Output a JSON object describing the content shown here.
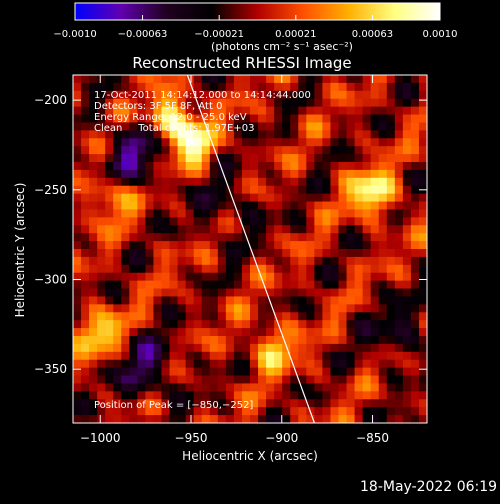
{
  "chart_data": {
    "type": "heatmap",
    "title": "Reconstructed RHESSI Image",
    "xlabel": "Heliocentric X (arcsec)",
    "ylabel": "Heliocentric Y (arcsec)",
    "xlim": [
      -1015,
      -820
    ],
    "ylim": [
      -380,
      -186
    ],
    "xticks": [
      -1000,
      -950,
      -900,
      -850
    ],
    "xtick_labels": [
      "−1000",
      "−950",
      "−900",
      "−850"
    ],
    "yticks": [
      -200,
      -250,
      -300,
      -350
    ],
    "ytick_labels": [
      "−200",
      "−250",
      "−300",
      "−350"
    ],
    "colorbar": {
      "range": [
        -0.001,
        0.001
      ],
      "ticks": [
        -0.001,
        -0.00063,
        -0.00021,
        0.00021,
        0.00063,
        0.001
      ],
      "tick_labels": [
        "−0.0010",
        "−0.00063",
        "−0.00021",
        "0.00021",
        "0.00063",
        "0.0010"
      ],
      "unit_label": "(photons cm⁻² s⁻¹ asec⁻²)",
      "colors": [
        "#0000ff",
        "#6000b0",
        "#200020",
        "#000000",
        "#b00000",
        "#ff5000",
        "#ffb000",
        "#ffff80",
        "#ffffff"
      ]
    },
    "info_lines": [
      "17-Oct-2011 14:14:12.000 to 14:14:44.000",
      "Detectors: 3F 5F 8F, Att 0",
      "Energy Range: 12.0 - 25.0 keV",
      "Clean     Total counts: 1.97E+03"
    ],
    "peak_label": "Position of Peak = [−850,−252]",
    "limb_line": [
      [
        -952,
        -186
      ],
      [
        -882,
        -380
      ]
    ],
    "hotspots": [
      {
        "x": -960,
        "y": -210,
        "amp": 1.0
      },
      {
        "x": -950,
        "y": -225,
        "amp": 0.9
      },
      {
        "x": -850,
        "y": -252,
        "amp": 1.0
      },
      {
        "x": -1000,
        "y": -330,
        "amp": 0.8
      },
      {
        "x": -905,
        "y": -338,
        "amp": 0.7
      },
      {
        "x": -995,
        "y": -255,
        "amp": 0.6
      }
    ],
    "coldspots": [
      {
        "x": -980,
        "y": -230,
        "amp": 0.9
      },
      {
        "x": -975,
        "y": -350,
        "amp": 0.8
      },
      {
        "x": -930,
        "y": -260,
        "amp": 0.5
      },
      {
        "x": -835,
        "y": -330,
        "amp": 0.6
      }
    ],
    "grid": false,
    "legend": "none"
  },
  "footer": {
    "timestamp": "18-May-2022 06:19"
  }
}
